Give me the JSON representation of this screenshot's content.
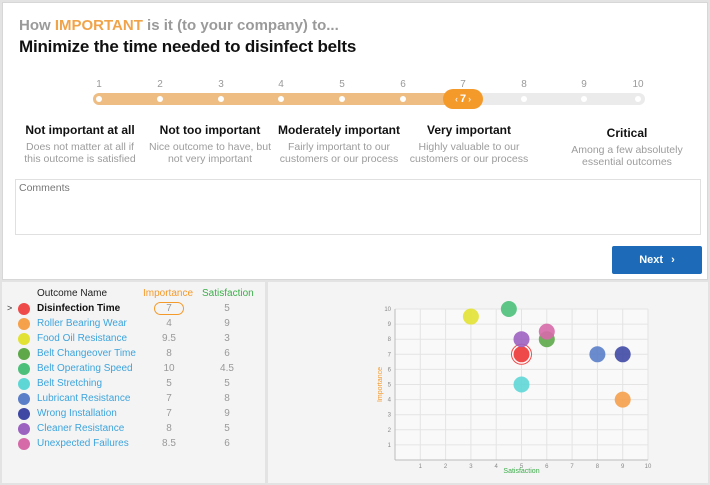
{
  "question": {
    "prefix_before": "How ",
    "prefix_highlight": "IMPORTANT",
    "prefix_after": " is it (to your company) to...",
    "title": "Minimize the time needed to disinfect belts"
  },
  "scale": {
    "numbers": [
      "1",
      "2",
      "3",
      "4",
      "5",
      "6",
      "7",
      "8",
      "9",
      "10"
    ],
    "selected": 7,
    "selected_label": "7",
    "handle_left": "‹",
    "handle_right": "›"
  },
  "categories": [
    {
      "title": "Not important at all",
      "desc": "Does not matter at all if this outcome is satisfied"
    },
    {
      "title": "Not too important",
      "desc": "Nice outcome to have, but not very important"
    },
    {
      "title": "Moderately important",
      "desc": "Fairly important to our customers or our process"
    },
    {
      "title": "Very important",
      "desc": "Highly valuable to our customers or our process"
    },
    {
      "title": "Critical",
      "desc": "Among a few absolutely essential outcomes"
    }
  ],
  "comments": {
    "label": "Comments"
  },
  "next_button": {
    "label": "Next",
    "icon": "›"
  },
  "table": {
    "headers": {
      "name": "Outcome Name",
      "importance": "Importance",
      "satisfaction": "Satisfaction"
    },
    "colors": {
      "importance": "#f49a2a",
      "satisfaction": "#3cae4a"
    },
    "selected_marker": ">",
    "rows": [
      {
        "name": "Disinfection Time",
        "importance": "7",
        "satisfaction": "5",
        "color": "#ef4a4a",
        "selected": true
      },
      {
        "name": "Roller Bearing Wear",
        "importance": "4",
        "satisfaction": "9",
        "color": "#f5a04a",
        "selected": false
      },
      {
        "name": "Food Oil Resistance",
        "importance": "9.5",
        "satisfaction": "3",
        "color": "#e2e234",
        "selected": false
      },
      {
        "name": "Belt Changeover Time",
        "importance": "8",
        "satisfaction": "6",
        "color": "#5ea84a",
        "selected": false
      },
      {
        "name": "Belt Operating Speed",
        "importance": "10",
        "satisfaction": "4.5",
        "color": "#4cc07a",
        "selected": false
      },
      {
        "name": "Belt Stretching",
        "importance": "5",
        "satisfaction": "5",
        "color": "#5fd6d6",
        "selected": false
      },
      {
        "name": "Lubricant Resistance",
        "importance": "7",
        "satisfaction": "8",
        "color": "#5a7ec8",
        "selected": false
      },
      {
        "name": "Wrong Installation",
        "importance": "7",
        "satisfaction": "9",
        "color": "#3f49a4",
        "selected": false
      },
      {
        "name": "Cleaner Resistance",
        "importance": "8",
        "satisfaction": "5",
        "color": "#9c62c0",
        "selected": false
      },
      {
        "name": "Unexpected Failures",
        "importance": "8.5",
        "satisfaction": "6",
        "color": "#d66aa8",
        "selected": false
      }
    ]
  },
  "chart_data": {
    "type": "scatter",
    "xlabel": "Satisfaction",
    "ylabel": "Importance",
    "xlim": [
      0,
      10
    ],
    "ylim": [
      0,
      10
    ],
    "x_ticks": [
      "1",
      "2",
      "3",
      "4",
      "5",
      "6",
      "7",
      "8",
      "9",
      "10"
    ],
    "y_ticks": [
      "1",
      "2",
      "3",
      "4",
      "5",
      "6",
      "7",
      "8",
      "9",
      "10"
    ],
    "grid": true,
    "xlabel_color": "#3cae4a",
    "ylabel_color": "#f49a2a",
    "points": [
      {
        "x": 5,
        "y": 7,
        "color": "#ef4a4a",
        "selected": true
      },
      {
        "x": 9,
        "y": 4,
        "color": "#f5a04a"
      },
      {
        "x": 3,
        "y": 9.5,
        "color": "#e2e234"
      },
      {
        "x": 6,
        "y": 8,
        "color": "#5ea84a"
      },
      {
        "x": 4.5,
        "y": 10,
        "color": "#4cc07a"
      },
      {
        "x": 5,
        "y": 5,
        "color": "#5fd6d6"
      },
      {
        "x": 8,
        "y": 7,
        "color": "#5a7ec8"
      },
      {
        "x": 9,
        "y": 7,
        "color": "#3f49a4"
      },
      {
        "x": 5,
        "y": 8,
        "color": "#9c62c0"
      },
      {
        "x": 6,
        "y": 8.5,
        "color": "#d66aa8"
      }
    ]
  }
}
